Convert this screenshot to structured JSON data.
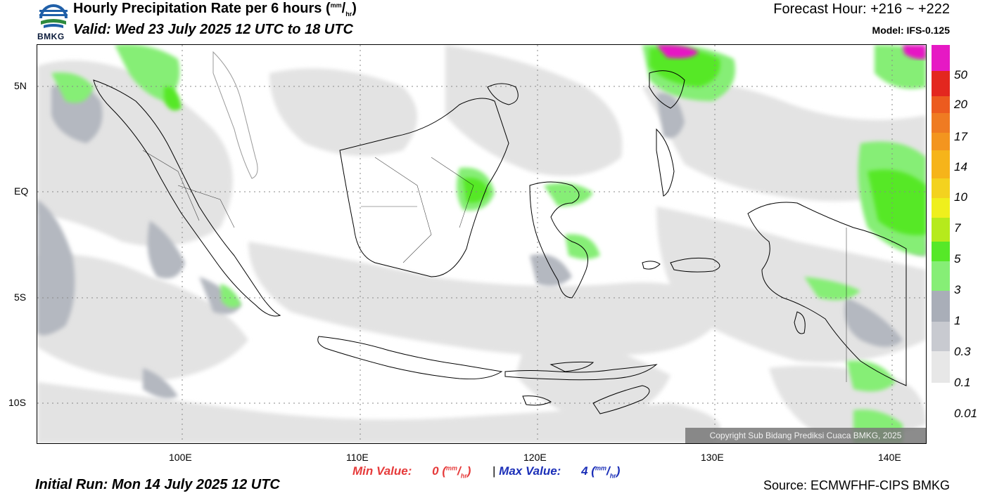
{
  "header": {
    "title": "Hourly Precipitation Rate per 6 hours",
    "title_unit_mm": "mm",
    "title_unit_hr": "hr",
    "valid": "Valid: Wed 23 July 2025 12 UTC to 18 UTC",
    "forecast_hour": "Forecast Hour: +216 ~ +222",
    "model": "Model: IFS-0.125",
    "logo_text": "BMKG"
  },
  "map": {
    "lat_labels": [
      "5N",
      "EQ",
      "5S",
      "10S"
    ],
    "lon_labels": [
      "100E",
      "110E",
      "120E",
      "130E",
      "140E"
    ],
    "copyright": "Copyright Sub Bidang Prediksi Cuaca BMKG, 2025"
  },
  "colorbar": {
    "labels": [
      "50",
      "20",
      "17",
      "14",
      "10",
      "7",
      "5",
      "3",
      "1",
      "0.3",
      "0.1",
      "0.01"
    ],
    "colors": [
      "#e619c4",
      "#e3271f",
      "#ec5b1f",
      "#ef7b22",
      "#f3951f",
      "#f6b41a",
      "#f3d21f",
      "#efef1d",
      "#b6ea1c",
      "#56e828",
      "#86ee76",
      "#a9aeb8",
      "#c8cad0",
      "#e7e7e7"
    ]
  },
  "footer": {
    "min_label": "Min Value:",
    "min_value": "0",
    "separator": "|",
    "max_label": "Max Value:",
    "max_value": "4",
    "unit_mm": "mm",
    "unit_hr": "hr",
    "initial_run": "Initial Run: Mon 14 July 2025 12 UTC",
    "source": "Source: ECMWFHF-CIPS BMKG"
  }
}
